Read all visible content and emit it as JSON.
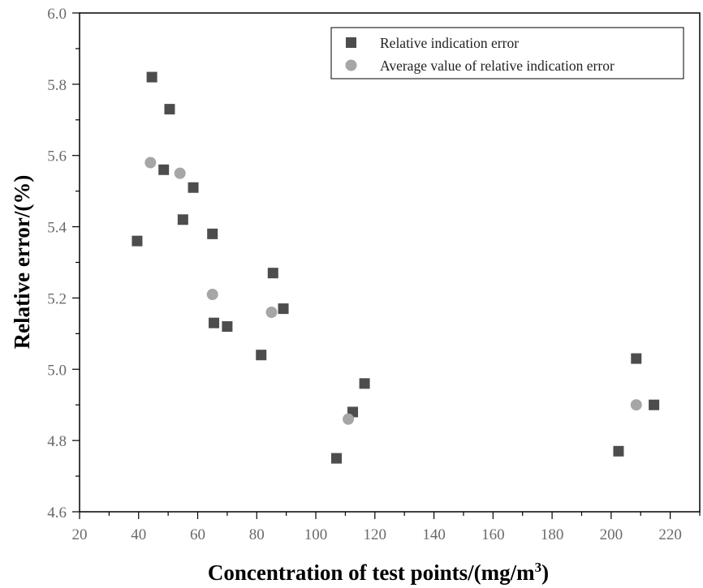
{
  "chart_data": {
    "type": "scatter",
    "xlabel": "Concentration of test points/(mg/m",
    "xlabel_sup": "3",
    "xlabel_end": ")",
    "ylabel": "Relative  error/(%)",
    "xlim": [
      20,
      230
    ],
    "ylim": [
      4.6,
      6.0
    ],
    "xticks": [
      20,
      40,
      60,
      80,
      100,
      120,
      140,
      160,
      180,
      200,
      220
    ],
    "yticks": [
      4.6,
      4.8,
      5.0,
      5.2,
      5.4,
      5.6,
      5.8,
      6.0
    ],
    "ytick_labels": [
      "4.6",
      "4.8",
      "5.0",
      "5.2",
      "5.4",
      "5.6",
      "5.8",
      "6.0"
    ],
    "legend_position": "top-right",
    "series": [
      {
        "name": "Relative indication error",
        "marker": "square",
        "color": "#4d4d4d",
        "points": [
          {
            "x": 39.5,
            "y": 5.36
          },
          {
            "x": 44.5,
            "y": 5.82
          },
          {
            "x": 48.5,
            "y": 5.56
          },
          {
            "x": 50.5,
            "y": 5.73
          },
          {
            "x": 55.0,
            "y": 5.42
          },
          {
            "x": 58.5,
            "y": 5.51
          },
          {
            "x": 65.0,
            "y": 5.38
          },
          {
            "x": 65.5,
            "y": 5.13
          },
          {
            "x": 70.0,
            "y": 5.12
          },
          {
            "x": 81.5,
            "y": 5.04
          },
          {
            "x": 85.5,
            "y": 5.27
          },
          {
            "x": 89.0,
            "y": 5.17
          },
          {
            "x": 107.0,
            "y": 4.75
          },
          {
            "x": 112.5,
            "y": 4.88
          },
          {
            "x": 116.5,
            "y": 4.96
          },
          {
            "x": 202.5,
            "y": 4.77
          },
          {
            "x": 208.5,
            "y": 5.03
          },
          {
            "x": 214.5,
            "y": 4.9
          }
        ]
      },
      {
        "name": "Average value of relative indication error",
        "marker": "circle",
        "color": "#a6a6a6",
        "points": [
          {
            "x": 44.0,
            "y": 5.58
          },
          {
            "x": 54.0,
            "y": 5.55
          },
          {
            "x": 65.0,
            "y": 5.21
          },
          {
            "x": 85.0,
            "y": 5.16
          },
          {
            "x": 111.0,
            "y": 4.86
          },
          {
            "x": 208.5,
            "y": 4.9
          }
        ]
      }
    ]
  }
}
